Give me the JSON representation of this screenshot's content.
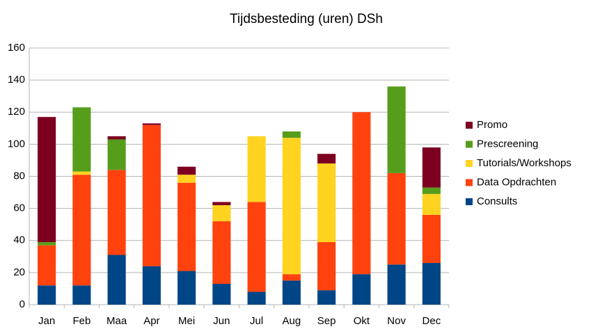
{
  "chart_data": {
    "type": "stacked_bar",
    "title": "Tijdsbesteding (uren) DSh",
    "categories": [
      "Jan",
      "Feb",
      "Maa",
      "Apr",
      "Mei",
      "Jun",
      "Jul",
      "Aug",
      "Sep",
      "Okt",
      "Nov",
      "Dec"
    ],
    "series": [
      {
        "name": "Consults",
        "color": "#004586",
        "values": [
          12,
          12,
          31,
          24,
          21,
          13,
          8,
          15,
          9,
          19,
          25,
          26
        ]
      },
      {
        "name": "Data Opdrachten",
        "color": "#ff420e",
        "values": [
          25,
          69,
          53,
          88,
          55,
          39,
          56,
          4,
          30,
          101,
          57,
          30
        ]
      },
      {
        "name": "Tutorials/Workshops",
        "color": "#ffd320",
        "values": [
          0,
          2,
          0,
          0,
          5,
          10,
          41,
          85,
          49,
          0,
          0,
          13
        ]
      },
      {
        "name": "Prescreening",
        "color": "#579d1c",
        "values": [
          2,
          40,
          19,
          0,
          0,
          0,
          0,
          4,
          0,
          0,
          54,
          4
        ]
      },
      {
        "name": "Promo",
        "color": "#7e0021",
        "values": [
          78,
          0,
          2,
          1,
          5,
          2,
          0,
          0,
          6,
          0,
          0,
          25
        ]
      }
    ],
    "ylim": [
      0,
      160
    ],
    "yticks": [
      0,
      20,
      40,
      60,
      80,
      100,
      120,
      140,
      160
    ],
    "grid": true,
    "legend": "right"
  }
}
